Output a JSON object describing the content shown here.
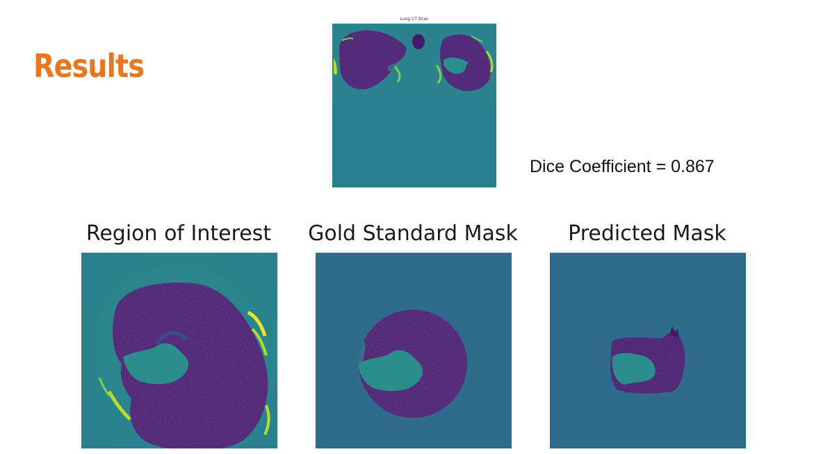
{
  "slide": {
    "title": "Results"
  },
  "ct_scan": {
    "title": "Lung CT Scan"
  },
  "metric": {
    "text": "Dice Coefficient = 0.867"
  },
  "panels": [
    {
      "title": "Region of Interest"
    },
    {
      "title": "Gold Standard Mask"
    },
    {
      "title": "Predicted Mask"
    }
  ],
  "colors": {
    "title_orange": "#e8771e",
    "viridis_background_teal": "#2a7f8e",
    "mask_background_blue": "#2f6b8c",
    "lung_purple": "#44196a",
    "lung_purple_light": "#4d2a7a",
    "highlight_green": "#b5dd2b",
    "highlight_yellow": "#e8e82a",
    "mid_teal": "#2b8e8c"
  }
}
